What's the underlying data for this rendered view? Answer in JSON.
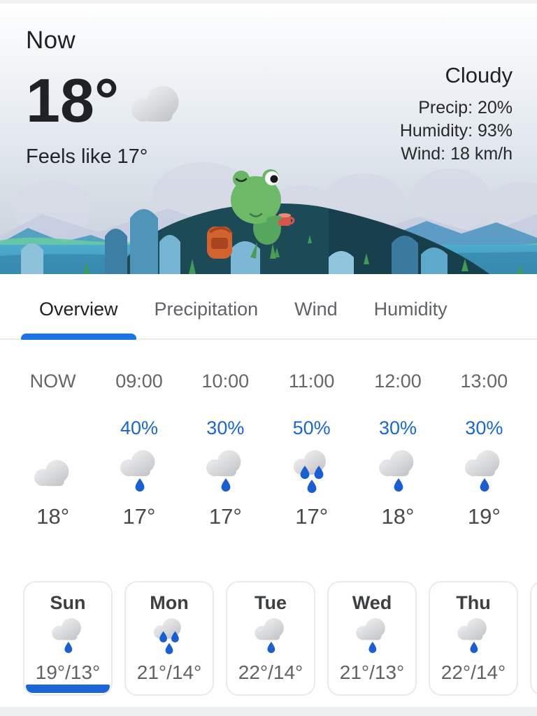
{
  "header": {
    "now_label": "Now",
    "temperature": "18°",
    "feels_like": "Feels like 17°",
    "condition": "Cloudy",
    "precip": "Precip: 20%",
    "humidity": "Humidity: 93%",
    "wind": "Wind: 18 km/h",
    "current_icon": "cloudy-icon"
  },
  "tabs": [
    {
      "label": "Overview",
      "selected": true
    },
    {
      "label": "Precipitation",
      "selected": false
    },
    {
      "label": "Wind",
      "selected": false
    },
    {
      "label": "Humidity",
      "selected": false
    }
  ],
  "hourly": [
    {
      "time": "NOW",
      "precip_pct": "",
      "icon": "cloudy-icon",
      "temp": "18°"
    },
    {
      "time": "09:00",
      "precip_pct": "40%",
      "icon": "light-rain-icon",
      "temp": "17°"
    },
    {
      "time": "10:00",
      "precip_pct": "30%",
      "icon": "light-rain-icon",
      "temp": "17°"
    },
    {
      "time": "11:00",
      "precip_pct": "50%",
      "icon": "heavy-rain-icon",
      "temp": "17°"
    },
    {
      "time": "12:00",
      "precip_pct": "30%",
      "icon": "light-rain-icon",
      "temp": "18°"
    },
    {
      "time": "13:00",
      "precip_pct": "30%",
      "icon": "light-rain-icon",
      "temp": "19°"
    }
  ],
  "daily": [
    {
      "day": "Sun",
      "icon": "light-rain-icon",
      "range": "19°/13°",
      "selected": true
    },
    {
      "day": "Mon",
      "icon": "heavy-rain-icon",
      "range": "21°/14°",
      "selected": false
    },
    {
      "day": "Tue",
      "icon": "light-rain-icon",
      "range": "22°/14°",
      "selected": false
    },
    {
      "day": "Wed",
      "icon": "light-rain-icon",
      "range": "21°/13°",
      "selected": false
    },
    {
      "day": "Thu",
      "icon": "light-rain-icon",
      "range": "22°/14°",
      "selected": false
    }
  ],
  "colors": {
    "accent": "#1a73e8",
    "precip_text": "#1967d2",
    "rain_drop": "#1a5fd2",
    "selected_card_bar": "#1a66d9",
    "tab_inactive": "#5f6368",
    "text_primary": "#202124"
  }
}
